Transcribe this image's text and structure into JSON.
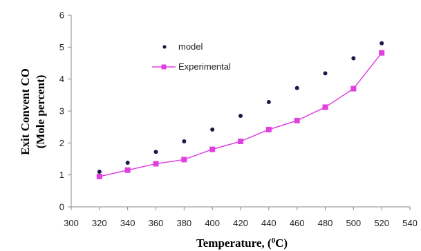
{
  "chart_data": {
    "type": "line",
    "xlabel": "Temperature, (",
    "xlabel_sup": "0",
    "xlabel_end": "C)",
    "ylabel_line1": "Exit Convent CO",
    "ylabel_line2": "(Mole percent)",
    "xlim": [
      300,
      540
    ],
    "ylim": [
      0,
      6
    ],
    "xticks": [
      "300",
      "320",
      "340",
      "360",
      "380",
      "400",
      "420",
      "440",
      "460",
      "480",
      "500",
      "520",
      "540"
    ],
    "yticks": [
      "0",
      "1",
      "2",
      "3",
      "4",
      "5",
      "6"
    ],
    "grid": false,
    "legend_position": "top-center",
    "x": [
      320,
      340,
      360,
      380,
      400,
      420,
      440,
      460,
      480,
      500,
      520
    ],
    "series": [
      {
        "name": "model",
        "style": "points",
        "color": "#1a1a4a",
        "values": [
          1.1,
          1.38,
          1.72,
          2.05,
          2.42,
          2.85,
          3.28,
          3.72,
          4.18,
          4.65,
          5.12
        ]
      },
      {
        "name": "Experimental",
        "style": "line-square",
        "color": "#e040e0",
        "values": [
          0.95,
          1.15,
          1.35,
          1.48,
          1.8,
          2.05,
          2.42,
          2.7,
          3.12,
          3.7,
          4.82
        ]
      }
    ]
  }
}
